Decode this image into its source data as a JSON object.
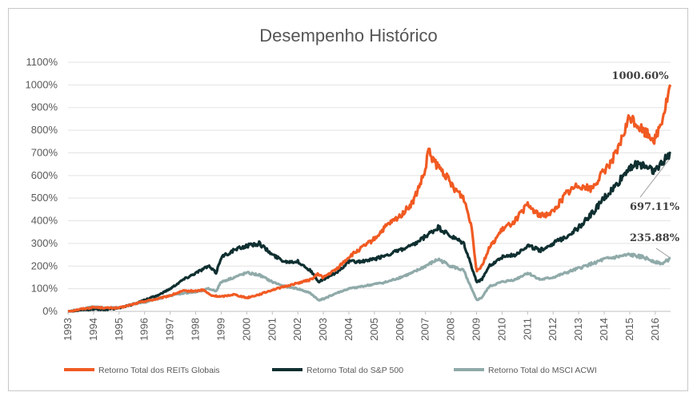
{
  "chart_data": {
    "type": "line",
    "title": "Desempenho Histórico",
    "xlabel": "",
    "ylabel": "",
    "ylim": [
      0,
      1100
    ],
    "y_ticks": [
      "0%",
      "100%",
      "200%",
      "300%",
      "400%",
      "500%",
      "600%",
      "700%",
      "800%",
      "900%",
      "1000%",
      "1100%"
    ],
    "x_ticks": [
      "1993",
      "1994",
      "1995",
      "1996",
      "1997",
      "1998",
      "1999",
      "2000",
      "2001",
      "2002",
      "2003",
      "2004",
      "2005",
      "2006",
      "2007",
      "2008",
      "2009",
      "2010",
      "2011",
      "2012",
      "2013",
      "2014",
      "2015",
      "2016"
    ],
    "xlim": [
      1993,
      2016.6
    ],
    "legend_position": "bottom",
    "series": [
      {
        "name": "Retorno Total dos REITs Globais",
        "color": "#f15a22",
        "points": [
          [
            1993,
            0
          ],
          [
            1993.5,
            10
          ],
          [
            1994,
            18
          ],
          [
            1994.5,
            15
          ],
          [
            1995,
            15
          ],
          [
            1995.5,
            30
          ],
          [
            1996,
            45
          ],
          [
            1996.5,
            55
          ],
          [
            1997,
            70
          ],
          [
            1997.5,
            90
          ],
          [
            1998,
            90
          ],
          [
            1998.3,
            95
          ],
          [
            1998.6,
            70
          ],
          [
            1999,
            65
          ],
          [
            1999.5,
            75
          ],
          [
            2000,
            60
          ],
          [
            2000.5,
            75
          ],
          [
            2001,
            95
          ],
          [
            2001.5,
            110
          ],
          [
            2002,
            125
          ],
          [
            2002.5,
            140
          ],
          [
            2002.8,
            165
          ],
          [
            2003,
            150
          ],
          [
            2003.5,
            185
          ],
          [
            2004,
            240
          ],
          [
            2004.5,
            280
          ],
          [
            2005,
            320
          ],
          [
            2005.5,
            380
          ],
          [
            2006,
            420
          ],
          [
            2006.5,
            480
          ],
          [
            2007,
            620
          ],
          [
            2007.1,
            710
          ],
          [
            2007.4,
            650
          ],
          [
            2007.8,
            600
          ],
          [
            2008,
            560
          ],
          [
            2008.5,
            500
          ],
          [
            2008.8,
            380
          ],
          [
            2009,
            180
          ],
          [
            2009.2,
            200
          ],
          [
            2009.5,
            280
          ],
          [
            2010,
            360
          ],
          [
            2010.5,
            400
          ],
          [
            2011,
            470
          ],
          [
            2011.5,
            420
          ],
          [
            2012,
            440
          ],
          [
            2012.5,
            520
          ],
          [
            2013,
            560
          ],
          [
            2013.5,
            540
          ],
          [
            2014,
            620
          ],
          [
            2014.5,
            700
          ],
          [
            2015,
            860
          ],
          [
            2015.5,
            800
          ],
          [
            2016,
            760
          ],
          [
            2016.3,
            860
          ],
          [
            2016.6,
            1000.6
          ]
        ]
      },
      {
        "name": "Retorno Total do S&P 500",
        "color": "#0f2f30",
        "points": [
          [
            1993,
            0
          ],
          [
            1993.5,
            5
          ],
          [
            1994,
            10
          ],
          [
            1994.5,
            8
          ],
          [
            1995,
            15
          ],
          [
            1995.5,
            30
          ],
          [
            1996,
            50
          ],
          [
            1996.5,
            70
          ],
          [
            1997,
            100
          ],
          [
            1997.5,
            140
          ],
          [
            1998,
            170
          ],
          [
            1998.5,
            200
          ],
          [
            1998.8,
            170
          ],
          [
            1999,
            240
          ],
          [
            1999.5,
            270
          ],
          [
            2000,
            290
          ],
          [
            2000.5,
            300
          ],
          [
            2001,
            250
          ],
          [
            2001.5,
            220
          ],
          [
            2002,
            220
          ],
          [
            2002.5,
            180
          ],
          [
            2002.8,
            130
          ],
          [
            2003,
            140
          ],
          [
            2003.5,
            170
          ],
          [
            2004,
            220
          ],
          [
            2004.5,
            220
          ],
          [
            2005,
            230
          ],
          [
            2005.5,
            250
          ],
          [
            2006,
            270
          ],
          [
            2006.5,
            290
          ],
          [
            2007,
            330
          ],
          [
            2007.5,
            370
          ],
          [
            2008,
            330
          ],
          [
            2008.5,
            300
          ],
          [
            2008.8,
            200
          ],
          [
            2009,
            130
          ],
          [
            2009.2,
            140
          ],
          [
            2009.5,
            200
          ],
          [
            2010,
            240
          ],
          [
            2010.5,
            250
          ],
          [
            2011,
            290
          ],
          [
            2011.5,
            270
          ],
          [
            2012,
            300
          ],
          [
            2012.5,
            330
          ],
          [
            2013,
            370
          ],
          [
            2013.5,
            430
          ],
          [
            2014,
            500
          ],
          [
            2014.5,
            560
          ],
          [
            2015,
            640
          ],
          [
            2015.5,
            650
          ],
          [
            2016,
            620
          ],
          [
            2016.3,
            660
          ],
          [
            2016.6,
            697.11
          ]
        ]
      },
      {
        "name": "Retorno Total do MSCI ACWI",
        "color": "#8faaa9",
        "points": [
          [
            1993,
            0
          ],
          [
            1993.5,
            10
          ],
          [
            1994,
            20
          ],
          [
            1994.5,
            15
          ],
          [
            1995,
            18
          ],
          [
            1995.5,
            30
          ],
          [
            1996,
            40
          ],
          [
            1996.5,
            55
          ],
          [
            1997,
            70
          ],
          [
            1997.5,
            80
          ],
          [
            1998,
            85
          ],
          [
            1998.5,
            100
          ],
          [
            1998.8,
            90
          ],
          [
            1999,
            130
          ],
          [
            1999.5,
            150
          ],
          [
            2000,
            170
          ],
          [
            2000.5,
            160
          ],
          [
            2001,
            130
          ],
          [
            2001.5,
            110
          ],
          [
            2002,
            100
          ],
          [
            2002.5,
            80
          ],
          [
            2002.8,
            50
          ],
          [
            2003,
            55
          ],
          [
            2003.5,
            80
          ],
          [
            2004,
            100
          ],
          [
            2004.5,
            110
          ],
          [
            2005,
            120
          ],
          [
            2005.5,
            130
          ],
          [
            2006,
            150
          ],
          [
            2006.5,
            170
          ],
          [
            2007,
            200
          ],
          [
            2007.5,
            230
          ],
          [
            2008,
            200
          ],
          [
            2008.5,
            180
          ],
          [
            2008.8,
            100
          ],
          [
            2009,
            50
          ],
          [
            2009.2,
            60
          ],
          [
            2009.5,
            110
          ],
          [
            2010,
            130
          ],
          [
            2010.5,
            140
          ],
          [
            2011,
            170
          ],
          [
            2011.5,
            140
          ],
          [
            2012,
            150
          ],
          [
            2012.5,
            170
          ],
          [
            2013,
            190
          ],
          [
            2013.5,
            210
          ],
          [
            2014,
            230
          ],
          [
            2014.5,
            240
          ],
          [
            2015,
            250
          ],
          [
            2015.5,
            240
          ],
          [
            2016,
            220
          ],
          [
            2016.3,
            210
          ],
          [
            2016.6,
            235.88
          ]
        ]
      }
    ],
    "annotations": [
      {
        "text": "1000.60%",
        "x": 2016.6,
        "y": 1000.6
      },
      {
        "text": "697.11%",
        "x": 2016.6,
        "y": 697.11
      },
      {
        "text": "235.88%",
        "x": 2016.6,
        "y": 235.88
      }
    ],
    "grid": "horizontal"
  }
}
